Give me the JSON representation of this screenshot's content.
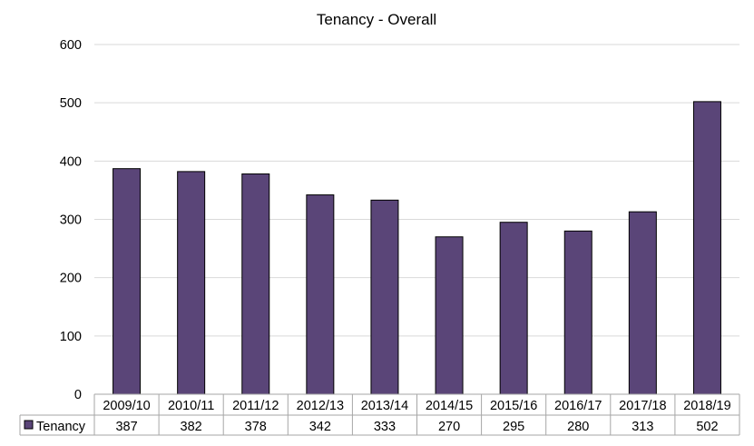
{
  "chart_data": {
    "type": "bar",
    "title": "Tenancy - Overall",
    "categories": [
      "2009/10",
      "2010/11",
      "2011/12",
      "2012/13",
      "2013/14",
      "2014/15",
      "2015/16",
      "2016/17",
      "2017/18",
      "2018/19"
    ],
    "series": [
      {
        "name": "Tenancy",
        "values": [
          387,
          382,
          378,
          342,
          333,
          270,
          295,
          280,
          313,
          502
        ],
        "color": "#5a4578"
      }
    ],
    "xlabel": "",
    "ylabel": "",
    "ylim": [
      0,
      600
    ],
    "yticks": [
      0,
      100,
      200,
      300,
      400,
      500,
      600
    ],
    "grid": true,
    "legend": "data-table-bottom"
  }
}
